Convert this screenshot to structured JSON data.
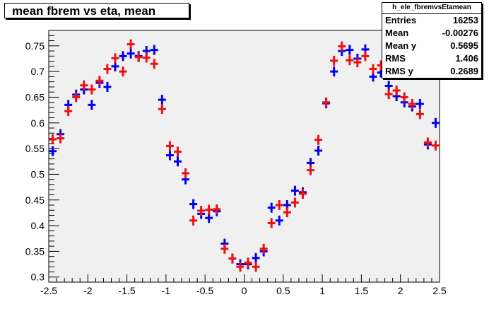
{
  "title": "mean fbrem vs eta, mean",
  "stats": {
    "name": "h_ele_fbremvsEtamean",
    "rows": [
      {
        "label": "Entries",
        "value": "16253"
      },
      {
        "label": "Mean",
        "value": "-0.00276"
      },
      {
        "label": "Mean y",
        "value": "0.5695"
      },
      {
        "label": "RMS",
        "value": "1.406"
      },
      {
        "label": "RMS y",
        "value": "0.2689"
      }
    ]
  },
  "colors": {
    "frame_bg": "#f0f0f0",
    "blue": "#0000ee",
    "red": "#ee1111"
  },
  "chart_data": {
    "type": "scatter",
    "xlim": [
      -2.5,
      2.5
    ],
    "ylim": [
      0.29,
      0.78
    ],
    "xticks": [
      "-2.5",
      "-2",
      "-1.5",
      "-1",
      "-0.5",
      "0",
      "0.5",
      "1",
      "1.5",
      "2",
      "2.5"
    ],
    "yticks": [
      "0.3",
      "0.35",
      "0.4",
      "0.45",
      "0.5",
      "0.55",
      "0.6",
      "0.65",
      "0.7",
      "0.75"
    ],
    "grid": false,
    "legend": "none",
    "series": [
      {
        "color": "blue",
        "x": [
          -2.45,
          -2.35,
          -2.25,
          -2.15,
          -2.05,
          -1.95,
          -1.85,
          -1.75,
          -1.65,
          -1.55,
          -1.45,
          -1.35,
          -1.25,
          -1.15,
          -1.05,
          -0.95,
          -0.85,
          -0.75,
          -0.65,
          -0.55,
          -0.45,
          -0.35,
          -0.25,
          -0.15,
          -0.05,
          0.05,
          0.15,
          0.25,
          0.35,
          0.45,
          0.55,
          0.65,
          0.75,
          0.85,
          0.95,
          1.05,
          1.15,
          1.25,
          1.35,
          1.45,
          1.55,
          1.65,
          1.75,
          1.85,
          1.95,
          2.05,
          2.15,
          2.25,
          2.35,
          2.45
        ],
        "y": [
          0.545,
          0.578,
          0.635,
          0.655,
          0.665,
          0.635,
          0.678,
          0.67,
          0.71,
          0.73,
          0.735,
          0.73,
          0.74,
          0.742,
          0.645,
          0.537,
          0.525,
          0.49,
          0.442,
          0.423,
          0.415,
          0.428,
          0.365,
          0.336,
          0.325,
          0.325,
          0.337,
          0.35,
          0.435,
          0.41,
          0.44,
          0.468,
          0.465,
          0.522,
          0.546,
          0.638,
          0.7,
          0.74,
          0.742,
          0.725,
          0.743,
          0.69,
          0.698,
          0.672,
          0.652,
          0.64,
          0.632,
          0.637,
          0.558,
          0.6
        ]
      },
      {
        "color": "red",
        "x": [
          -2.45,
          -2.35,
          -2.25,
          -2.15,
          -2.05,
          -1.95,
          -1.85,
          -1.75,
          -1.65,
          -1.55,
          -1.45,
          -1.35,
          -1.25,
          -1.15,
          -1.05,
          -0.95,
          -0.85,
          -0.75,
          -0.65,
          -0.55,
          -0.45,
          -0.35,
          -0.25,
          -0.15,
          -0.05,
          0.05,
          0.15,
          0.25,
          0.35,
          0.45,
          0.55,
          0.65,
          0.75,
          0.85,
          0.95,
          1.05,
          1.15,
          1.25,
          1.35,
          1.45,
          1.55,
          1.65,
          1.75,
          1.85,
          1.95,
          2.05,
          2.15,
          2.25,
          2.35,
          2.45
        ],
        "y": [
          0.568,
          0.57,
          0.623,
          0.65,
          0.673,
          0.665,
          0.682,
          0.705,
          0.726,
          0.7,
          0.753,
          0.728,
          0.727,
          0.715,
          0.627,
          0.555,
          0.544,
          0.502,
          0.41,
          0.429,
          0.431,
          0.432,
          0.355,
          0.336,
          0.32,
          0.328,
          0.32,
          0.355,
          0.405,
          0.44,
          0.426,
          0.445,
          0.462,
          0.508,
          0.567,
          0.64,
          0.721,
          0.749,
          0.722,
          0.718,
          0.73,
          0.705,
          0.712,
          0.656,
          0.663,
          0.65,
          0.637,
          0.617,
          0.562,
          0.556
        ]
      }
    ]
  }
}
